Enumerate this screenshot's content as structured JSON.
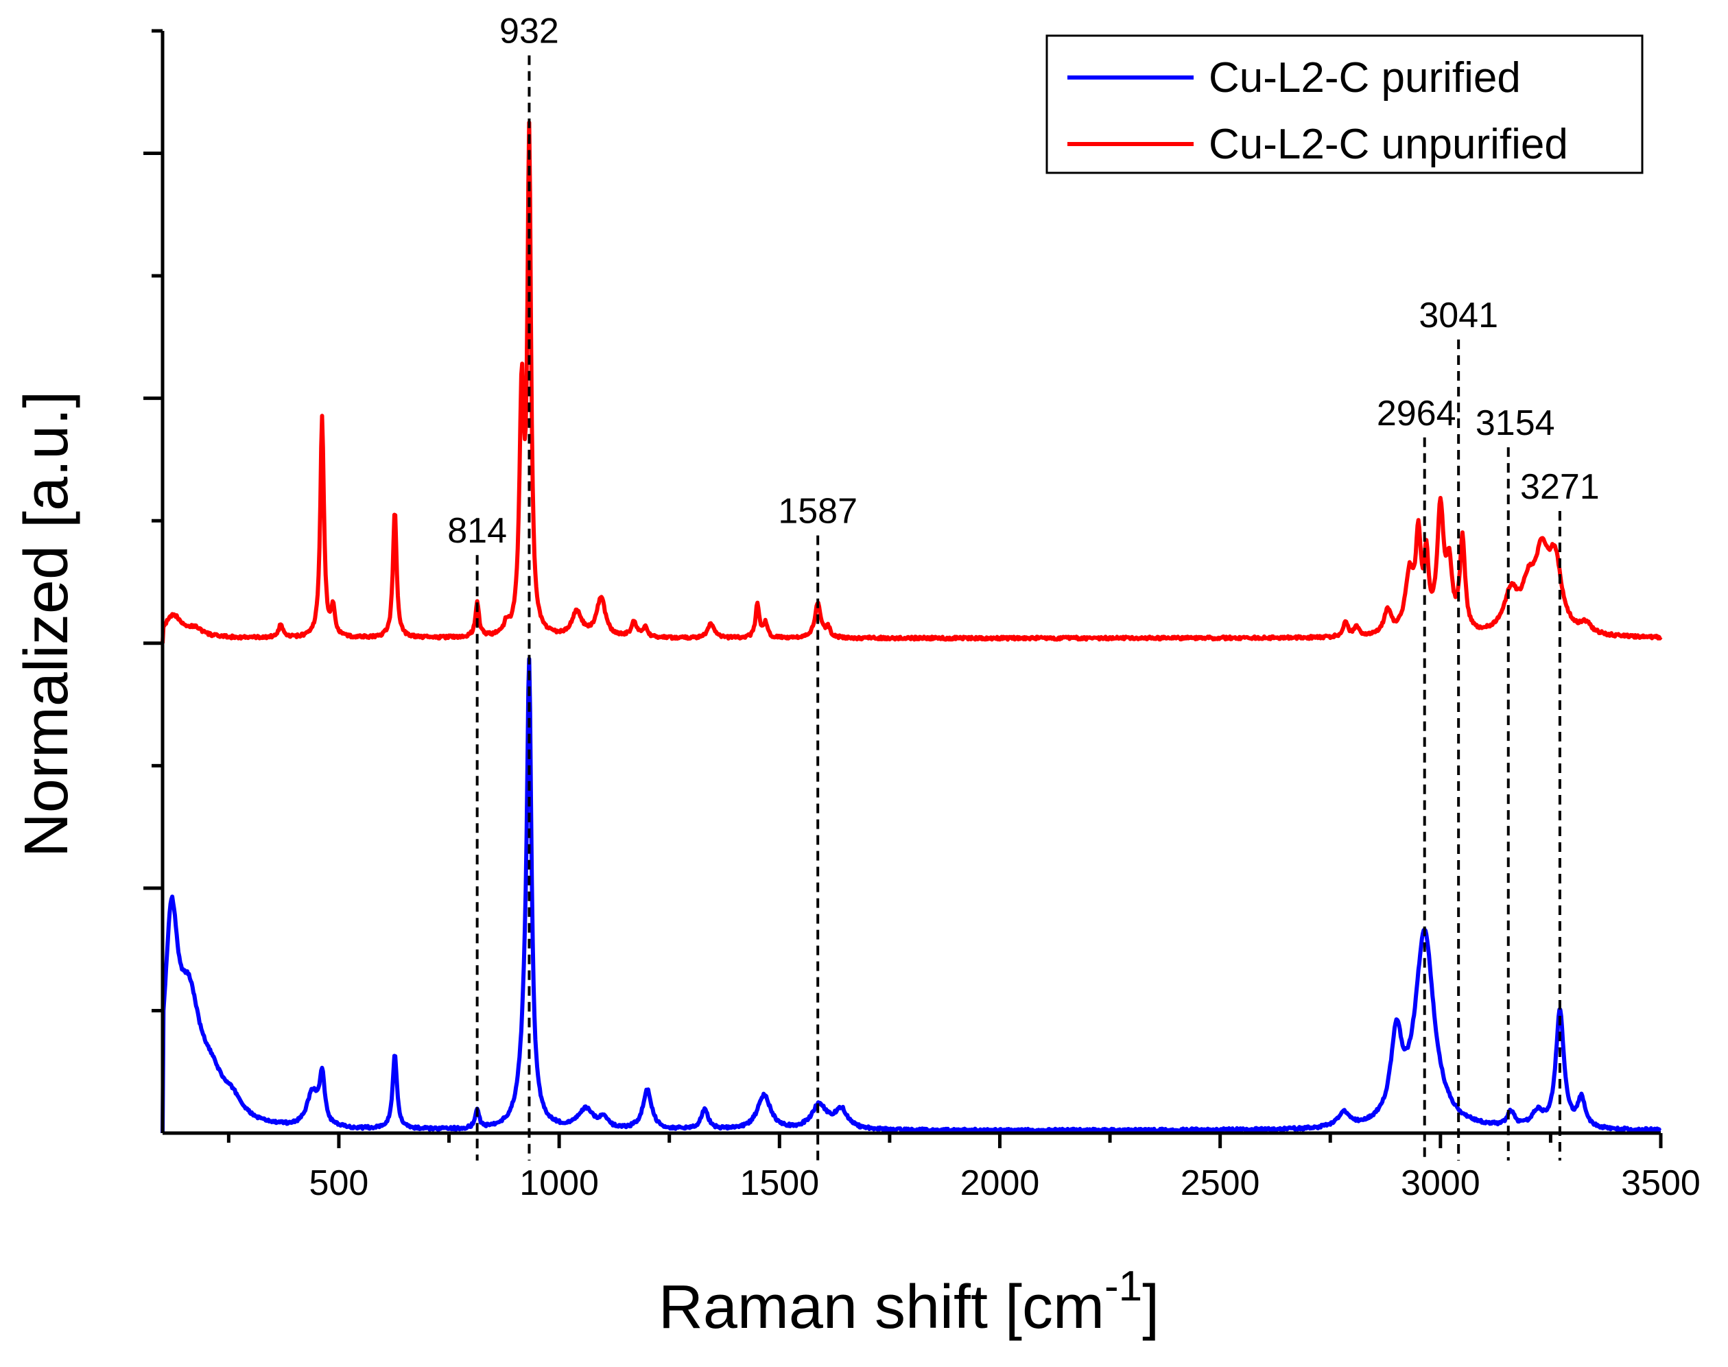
{
  "chart_data": {
    "type": "line",
    "xlabel": "Raman shift [cm",
    "xlabel_sup": "-1",
    "xlabel_close": "]",
    "ylabel": "Normalized [a.u.]",
    "xlim": [
      100,
      3500
    ],
    "ylim": [
      0,
      2.25
    ],
    "x_ticks": [
      500,
      1000,
      1500,
      2000,
      2500,
      3000,
      3500
    ],
    "x_tick_labels": [
      "500",
      "1000",
      "1500",
      "2000",
      "2500",
      "3000",
      "3500"
    ],
    "y_tick_labels_shown": false,
    "legend_position": "top-right",
    "peak_markers": [
      {
        "x": 814,
        "label": "814",
        "top": 1.18
      },
      {
        "x": 932,
        "label": "932",
        "top": 2.2
      },
      {
        "x": 1587,
        "label": "1587",
        "top": 1.22
      },
      {
        "x": 2964,
        "label": "2964",
        "top": 1.42
      },
      {
        "x": 3041,
        "label": "3041",
        "top": 1.62
      },
      {
        "x": 3154,
        "label": "3154",
        "top": 1.4
      },
      {
        "x": 3271,
        "label": "3271",
        "top": 1.27
      }
    ],
    "series": [
      {
        "name": "Cu-L2-C purified",
        "color": "#0000ff",
        "offset": 0,
        "baseline": 0.005,
        "start": {
          "x": 100,
          "y": 0.0
        },
        "peaks": [
          {
            "x": 120,
            "h": 0.38,
            "w": 18
          },
          {
            "x": 160,
            "h": 0.22,
            "w": 30
          },
          {
            "x": 210,
            "h": 0.08,
            "w": 40
          },
          {
            "x": 260,
            "h": 0.03,
            "w": 25
          },
          {
            "x": 440,
            "h": 0.07,
            "w": 15
          },
          {
            "x": 462,
            "h": 0.1,
            "w": 7
          },
          {
            "x": 627,
            "h": 0.15,
            "w": 6
          },
          {
            "x": 814,
            "h": 0.04,
            "w": 5
          },
          {
            "x": 925,
            "h": 0.2,
            "w": 14
          },
          {
            "x": 932,
            "h": 0.8,
            "w": 6
          },
          {
            "x": 1060,
            "h": 0.04,
            "w": 20
          },
          {
            "x": 1100,
            "h": 0.02,
            "w": 12
          },
          {
            "x": 1200,
            "h": 0.08,
            "w": 12
          },
          {
            "x": 1330,
            "h": 0.04,
            "w": 10
          },
          {
            "x": 1465,
            "h": 0.07,
            "w": 18
          },
          {
            "x": 1590,
            "h": 0.05,
            "w": 20
          },
          {
            "x": 1640,
            "h": 0.04,
            "w": 18
          },
          {
            "x": 2780,
            "h": 0.03,
            "w": 15
          },
          {
            "x": 2900,
            "h": 0.17,
            "w": 15
          },
          {
            "x": 2964,
            "h": 0.4,
            "w": 26
          },
          {
            "x": 3160,
            "h": 0.03,
            "w": 10
          },
          {
            "x": 3220,
            "h": 0.03,
            "w": 15
          },
          {
            "x": 3271,
            "h": 0.24,
            "w": 11
          },
          {
            "x": 3320,
            "h": 0.06,
            "w": 10
          }
        ]
      },
      {
        "name": "Cu-L2-C unpurified",
        "color": "#ff0000",
        "offset": 1.0,
        "baseline": 0.01,
        "start": {
          "x": 100,
          "y": 0.0
        },
        "peaks": [
          {
            "x": 125,
            "h": 0.045,
            "w": 25
          },
          {
            "x": 175,
            "h": 0.015,
            "w": 20
          },
          {
            "x": 368,
            "h": 0.025,
            "w": 6
          },
          {
            "x": 462,
            "h": 0.45,
            "w": 5
          },
          {
            "x": 487,
            "h": 0.06,
            "w": 5
          },
          {
            "x": 627,
            "h": 0.26,
            "w": 5
          },
          {
            "x": 814,
            "h": 0.07,
            "w": 5
          },
          {
            "x": 880,
            "h": 0.02,
            "w": 6
          },
          {
            "x": 915,
            "h": 0.48,
            "w": 6
          },
          {
            "x": 932,
            "h": 1.0,
            "w": 5
          },
          {
            "x": 1040,
            "h": 0.05,
            "w": 14
          },
          {
            "x": 1095,
            "h": 0.08,
            "w": 12
          },
          {
            "x": 1170,
            "h": 0.03,
            "w": 8
          },
          {
            "x": 1195,
            "h": 0.02,
            "w": 6
          },
          {
            "x": 1345,
            "h": 0.03,
            "w": 8
          },
          {
            "x": 1450,
            "h": 0.07,
            "w": 5
          },
          {
            "x": 1468,
            "h": 0.03,
            "w": 5
          },
          {
            "x": 1587,
            "h": 0.07,
            "w": 8
          },
          {
            "x": 1610,
            "h": 0.02,
            "w": 6
          },
          {
            "x": 2785,
            "h": 0.03,
            "w": 7
          },
          {
            "x": 2810,
            "h": 0.02,
            "w": 6
          },
          {
            "x": 2880,
            "h": 0.05,
            "w": 10
          },
          {
            "x": 2930,
            "h": 0.12,
            "w": 12
          },
          {
            "x": 2950,
            "h": 0.18,
            "w": 7
          },
          {
            "x": 2968,
            "h": 0.14,
            "w": 6
          },
          {
            "x": 3000,
            "h": 0.25,
            "w": 9
          },
          {
            "x": 3020,
            "h": 0.12,
            "w": 8
          },
          {
            "x": 3050,
            "h": 0.19,
            "w": 7
          },
          {
            "x": 3160,
            "h": 0.08,
            "w": 20
          },
          {
            "x": 3200,
            "h": 0.08,
            "w": 18
          },
          {
            "x": 3230,
            "h": 0.14,
            "w": 18
          },
          {
            "x": 3260,
            "h": 0.14,
            "w": 18
          },
          {
            "x": 3330,
            "h": 0.02,
            "w": 15
          }
        ]
      }
    ]
  }
}
